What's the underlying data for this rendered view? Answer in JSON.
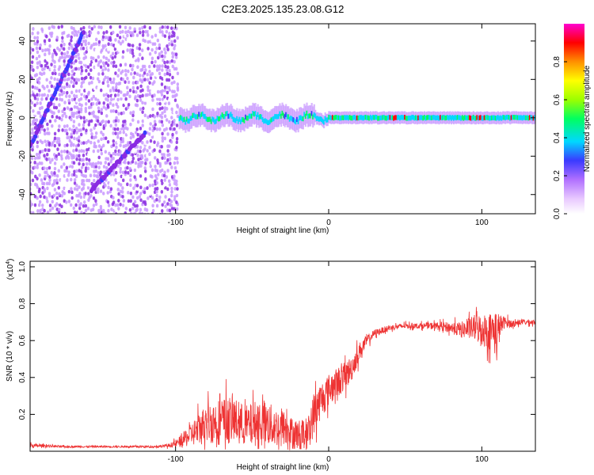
{
  "title": "C2E3.2025.135.23.08.G12",
  "chart_data": [
    {
      "type": "heatmap",
      "name": "spectrogram",
      "xlabel": "Height of straight line (km)",
      "ylabel": "Frequency (Hz)",
      "xlim": [
        -195,
        135
      ],
      "ylim": [
        -50,
        49
      ],
      "x_ticks": [
        -100,
        0,
        100
      ],
      "x_tick_labels": [
        "-100",
        "0",
        "100"
      ],
      "y_ticks": [
        -40,
        -20,
        0,
        20,
        40
      ],
      "y_tick_labels": [
        "-40",
        "-20",
        "0",
        "20",
        "40"
      ],
      "colorbar": {
        "label": "Normalized spectral amplitude",
        "range": [
          0,
          1
        ],
        "ticks": [
          0.0,
          0.2,
          0.4,
          0.6,
          0.8
        ],
        "tick_labels": [
          "0.0",
          "0.2",
          "0.4",
          "0.6",
          "0.8"
        ],
        "colormap": [
          "#ffffff",
          "#c896ff",
          "#8a2be2",
          "#3a3aff",
          "#00d8ff",
          "#00ff60",
          "#9cff00",
          "#ffff00",
          "#ff9000",
          "#ff0000",
          "#ff00d0"
        ]
      },
      "features": {
        "noise_region_x": [
          -195,
          -98
        ],
        "line1": {
          "x": [
            -195,
            -160
          ],
          "y": [
            -15,
            45
          ]
        },
        "line2": {
          "x": [
            -155,
            -120
          ],
          "y": [
            -38,
            -8
          ]
        },
        "carrier_x": [
          -98,
          135
        ],
        "carrier_y": 0
      }
    },
    {
      "type": "line",
      "name": "snr",
      "xlabel": "Height of straight line (km)",
      "ylabel": "SNR (10 * v/v)",
      "y_scale_label": "(x10^4)",
      "y_scale_text": "(x10",
      "y_scale_exp": "4",
      "xlim": [
        -195,
        135
      ],
      "ylim": [
        0,
        1.03
      ],
      "x_ticks": [
        -100,
        0,
        100
      ],
      "x_tick_labels": [
        "-100",
        "0",
        "100"
      ],
      "y_ticks": [
        0.2,
        0.4,
        0.6,
        0.8,
        1.0
      ],
      "y_tick_labels": [
        "0.2",
        "0.4",
        "0.6",
        "0.8",
        "1.0"
      ],
      "color": "#ee3333",
      "series": [
        {
          "name": "SNR",
          "x": [
            -195,
            -185,
            -175,
            -165,
            -155,
            -145,
            -135,
            -125,
            -115,
            -105,
            -100,
            -95,
            -90,
            -85,
            -80,
            -75,
            -70,
            -65,
            -60,
            -55,
            -50,
            -45,
            -40,
            -35,
            -30,
            -25,
            -20,
            -15,
            -12,
            -10,
            -5,
            0,
            5,
            10,
            15,
            20,
            25,
            30,
            40,
            50,
            60,
            70,
            80,
            85,
            90,
            95,
            100,
            105,
            108,
            110,
            112,
            115,
            120,
            125,
            130,
            135
          ],
          "y": [
            0.03,
            0.03,
            0.025,
            0.025,
            0.025,
            0.025,
            0.025,
            0.025,
            0.025,
            0.03,
            0.04,
            0.06,
            0.09,
            0.12,
            0.15,
            0.16,
            0.16,
            0.17,
            0.16,
            0.14,
            0.14,
            0.17,
            0.15,
            0.13,
            0.13,
            0.1,
            0.09,
            0.1,
            0.12,
            0.2,
            0.28,
            0.33,
            0.37,
            0.4,
            0.45,
            0.54,
            0.6,
            0.64,
            0.67,
            0.68,
            0.68,
            0.68,
            0.67,
            0.66,
            0.66,
            0.67,
            0.66,
            0.65,
            0.66,
            0.62,
            0.68,
            0.7,
            0.69,
            0.7,
            0.7,
            0.7
          ],
          "noise_amplitude": [
            0.012,
            0.008,
            0.006,
            0.005,
            0.005,
            0.005,
            0.005,
            0.005,
            0.005,
            0.01,
            0.02,
            0.04,
            0.06,
            0.09,
            0.11,
            0.12,
            0.13,
            0.13,
            0.12,
            0.11,
            0.12,
            0.13,
            0.12,
            0.11,
            0.1,
            0.09,
            0.08,
            0.08,
            0.09,
            0.12,
            0.1,
            0.09,
            0.08,
            0.08,
            0.07,
            0.05,
            0.03,
            0.02,
            0.015,
            0.015,
            0.015,
            0.02,
            0.03,
            0.04,
            0.05,
            0.07,
            0.09,
            0.1,
            0.12,
            0.16,
            0.06,
            0.03,
            0.02,
            0.015,
            0.015,
            0.015
          ]
        }
      ]
    }
  ]
}
